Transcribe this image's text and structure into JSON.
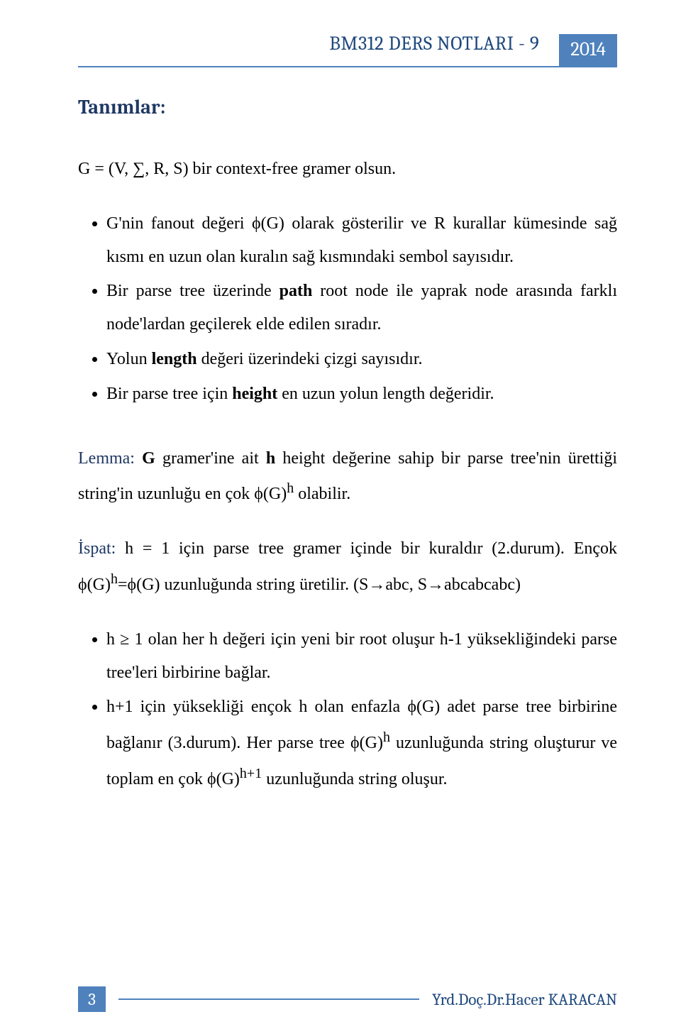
{
  "header": {
    "title": "BM312 DERS NOTLARI - 9",
    "year": "2014"
  },
  "section_heading": "Tanımlar:",
  "grammar_def": "G = (V, ∑, R, S) bir context-free gramer olsun.",
  "bullets1": [
    "G'nin fanout değeri ϕ(G) olarak gösterilir ve R kurallar kümesinde sağ kısmı en uzun olan kuralın sağ kısmındaki sembol sayısıdır.",
    "Bir parse tree üzerinde <b>path</b> root node ile yaprak node arasında farklı node'lardan geçilerek elde edilen sıradır.",
    "Yolun <b>length</b> değeri üzerindeki çizgi sayısıdır.",
    "Bir parse tree için <b>height</b> en uzun yolun length değeridir."
  ],
  "lemma": {
    "label": "Lemma:",
    "text": "<b>G</b> gramer'ine ait <b>h</b> height değerine sahip bir parse tree'nin ürettiği string'in uzunluğu en çok ϕ(G)<sup>h</sup> olabilir."
  },
  "ispat": {
    "label": "İspat:",
    "text": "h = 1 için parse tree gramer içinde bir kuraldır (2.durum). Ençok ϕ(G)<sup>h</sup>=ϕ(G) uzunluğunda string üretilir. (S→abc, S→abcabcabc)"
  },
  "bullets2": [
    "h ≥ 1 olan her h değeri için yeni bir root oluşur h-1 yüksekliğindeki parse tree'leri birbirine bağlar.",
    "h+1 için yüksekliği ençok h olan enfazla ϕ(G) adet parse tree birbirine bağlanır (3.durum). Her parse tree ϕ(G)<sup>h</sup> uzunluğunda string oluşturur ve toplam en çok ϕ(G)<sup>h+1</sup> uzunluğunda string oluşur."
  ],
  "footer": {
    "page_number": "3",
    "author": "Yrd.Doç.Dr.Hacer KARACAN"
  }
}
